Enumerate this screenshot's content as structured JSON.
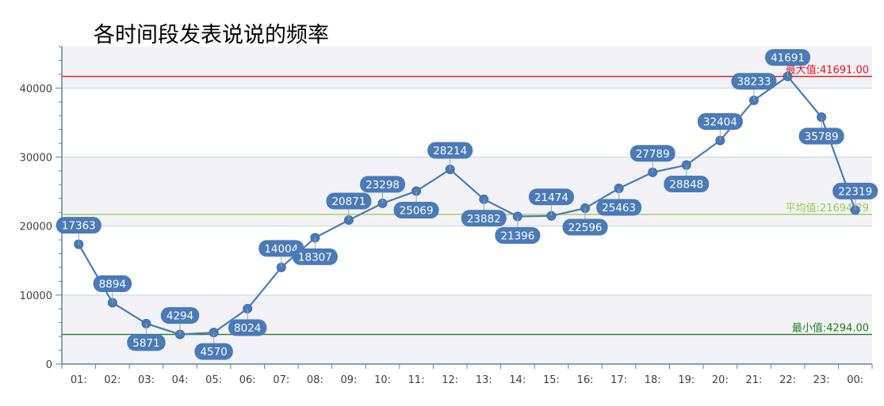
{
  "chart_data": {
    "type": "line",
    "title": "各时间段发表说说的频率",
    "categories": [
      "01:",
      "02:",
      "03:",
      "04:",
      "05:",
      "06:",
      "07:",
      "08:",
      "09:",
      "10:",
      "11:",
      "12:",
      "13:",
      "14:",
      "15:",
      "16:",
      "17:",
      "18:",
      "19:",
      "20:",
      "21:",
      "22:",
      "23:",
      "00:"
    ],
    "values": [
      17363,
      8894,
      5871,
      4294,
      4570,
      8024,
      14004,
      18307,
      20871,
      23298,
      25069,
      28214,
      23882,
      21396,
      21474,
      22596,
      25463,
      27789,
      28848,
      32404,
      38233,
      41691,
      35789,
      22319
    ],
    "label_positions": [
      "above",
      "above",
      "below",
      "above",
      "below",
      "below",
      "above",
      "below",
      "above",
      "above",
      "below",
      "above",
      "below",
      "below",
      "above",
      "below",
      "below",
      "above",
      "below",
      "above",
      "above",
      "above",
      "below",
      "above"
    ],
    "ylim": [
      0,
      46000
    ],
    "yticks": [
      0,
      10000,
      20000,
      30000,
      40000
    ],
    "ytick_labels": [
      "0",
      "10000",
      "20000",
      "30000",
      "40000"
    ],
    "xlabel": "",
    "ylabel": "",
    "grid": true,
    "reference_lines": [
      {
        "label": "最大值:41691.00",
        "value": 41691,
        "color": "#e8111a"
      },
      {
        "label": "平均值:21694.29",
        "value": 21694.29,
        "color": "#9cc84a"
      },
      {
        "label": "最小值:4294.00",
        "value": 4294,
        "color": "#1f7d1f"
      }
    ],
    "colors": {
      "series": "#4a7ab7",
      "label_fill": "#4a7ab7",
      "band": "#f2f2f6",
      "grid": "#c4d2e0",
      "axis": "#607fa6"
    }
  }
}
